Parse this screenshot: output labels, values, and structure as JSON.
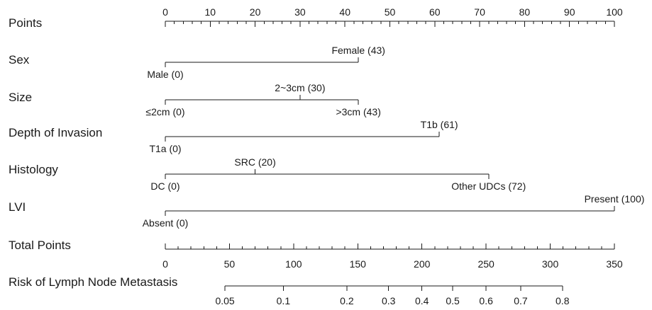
{
  "chart_data": {
    "type": "nomogram",
    "title": "",
    "rows": [
      {
        "label": "Points",
        "kind": "points-scale",
        "range": [
          0,
          100
        ],
        "major_ticks": [
          0,
          10,
          20,
          30,
          40,
          50,
          60,
          70,
          80,
          90,
          100
        ],
        "minor_step": 2
      },
      {
        "label": "Sex",
        "kind": "predictor",
        "levels": [
          {
            "label": "Male (0)",
            "points": 0,
            "side": "below"
          },
          {
            "label": "Female (43)",
            "points": 43,
            "side": "above"
          }
        ]
      },
      {
        "label": "Size",
        "kind": "predictor",
        "levels": [
          {
            "label": "≤2cm (0)",
            "points": 0,
            "side": "below"
          },
          {
            "label": "2~3cm (30)",
            "points": 30,
            "side": "above"
          },
          {
            "label": ">3cm (43)",
            "points": 43,
            "side": "below"
          }
        ]
      },
      {
        "label": "Depth of Invasion",
        "kind": "predictor",
        "levels": [
          {
            "label": "T1a (0)",
            "points": 0,
            "side": "below"
          },
          {
            "label": "T1b (61)",
            "points": 61,
            "side": "above"
          }
        ]
      },
      {
        "label": "Histology",
        "kind": "predictor",
        "levels": [
          {
            "label": "DC (0)",
            "points": 0,
            "side": "below"
          },
          {
            "label": "SRC (20)",
            "points": 20,
            "side": "above"
          },
          {
            "label": "Other UDCs (72)",
            "points": 72,
            "side": "below"
          }
        ]
      },
      {
        "label": "LVI",
        "kind": "predictor",
        "levels": [
          {
            "label": "Absent (0)",
            "points": 0,
            "side": "below"
          },
          {
            "label": "Present (100)",
            "points": 100,
            "side": "above"
          }
        ]
      },
      {
        "label": "Total Points",
        "kind": "total-scale",
        "range": [
          0,
          350
        ],
        "major_ticks": [
          0,
          50,
          100,
          150,
          200,
          250,
          300,
          350
        ],
        "minor_step": 10
      },
      {
        "label": "Risk of Lymph Node Metastasis",
        "kind": "probability-scale",
        "ticks": [
          {
            "label": "0.05",
            "total_points": 46.5
          },
          {
            "label": "0.1",
            "total_points": 92
          },
          {
            "label": "0.2",
            "total_points": 141.5
          },
          {
            "label": "0.3",
            "total_points": 174
          },
          {
            "label": "0.4",
            "total_points": 200
          },
          {
            "label": "0.5",
            "total_points": 224
          },
          {
            "label": "0.6",
            "total_points": 250
          },
          {
            "label": "0.7",
            "total_points": 277
          },
          {
            "label": "0.8",
            "total_points": 309.5
          }
        ]
      }
    ]
  }
}
